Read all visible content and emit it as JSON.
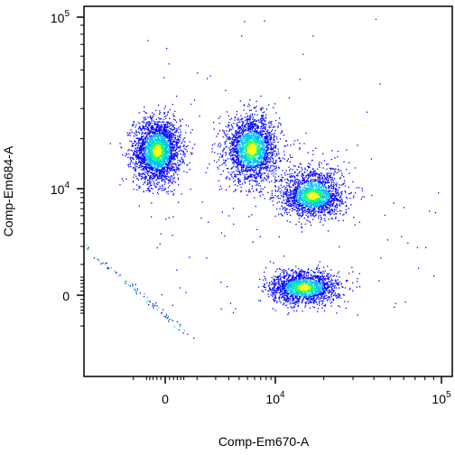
{
  "chart_data": {
    "type": "scatter",
    "style": "flow-cytometry density dot plot (biexponential axes)",
    "xlabel": "Comp-Em670-A",
    "ylabel": "Comp-Em684-A",
    "x_ticks": [
      {
        "value": 0,
        "base": "0",
        "exp": ""
      },
      {
        "value": 10000,
        "base": "10",
        "exp": "4"
      },
      {
        "value": 100000,
        "base": "10",
        "exp": "5"
      }
    ],
    "y_ticks": [
      {
        "value": 0,
        "base": "0",
        "exp": ""
      },
      {
        "value": 10000,
        "base": "10",
        "exp": "4"
      },
      {
        "value": 100000,
        "base": "10",
        "exp": "5"
      }
    ],
    "xlim": [
      -1200,
      110000
    ],
    "ylim": [
      -1200,
      110000
    ],
    "grid": false,
    "legend": "none",
    "colormap": [
      "#0000ff",
      "#00bfff",
      "#00ff7f",
      "#ffff00"
    ],
    "populations": [
      {
        "center": [
          -200,
          17000
        ],
        "count": 2600
      },
      {
        "center": [
          5500,
          17500
        ],
        "count": 2200
      },
      {
        "center": [
          17000,
          8500
        ],
        "count": 1900
      },
      {
        "center": [
          15000,
          200
        ],
        "count": 1700
      },
      {
        "center": [
          -500,
          -100
        ],
        "count": 80
      }
    ]
  }
}
